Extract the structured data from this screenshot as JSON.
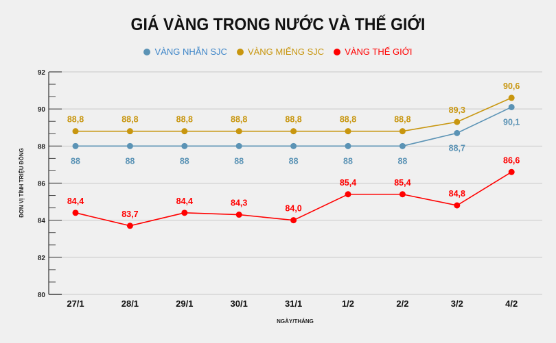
{
  "chart_data": {
    "type": "line",
    "title": "GIÁ VÀNG TRONG NƯỚC VÀ THẾ GIỚI",
    "xlabel": "NGÀY/THÁNG",
    "ylabel": "ĐƠN VỊ TÍNH TRIỆU ĐỒNG",
    "ylim": [
      80,
      92
    ],
    "yticks": [
      80,
      82,
      84,
      86,
      88,
      90,
      92
    ],
    "grid": true,
    "legend": "top",
    "categories": [
      "27/1",
      "28/1",
      "29/1",
      "30/1",
      "31/1",
      "1/2",
      "2/2",
      "3/2",
      "4/2"
    ],
    "series": [
      {
        "name": "VÀNG NHẪN SJC",
        "color": "#5b93b5",
        "values": [
          88,
          88,
          88,
          88,
          88,
          88,
          88,
          88.7,
          90.1
        ],
        "labels": [
          "88",
          "88",
          "88",
          "88",
          "88",
          "88",
          "88",
          "88,7",
          "90,1"
        ],
        "label_pos": "below"
      },
      {
        "name": "VÀNG MIẾNG SJC",
        "color": "#c8960f",
        "values": [
          88.8,
          88.8,
          88.8,
          88.8,
          88.8,
          88.8,
          88.8,
          89.3,
          90.6
        ],
        "labels": [
          "88,8",
          "88,8",
          "88,8",
          "88,8",
          "88,8",
          "88,8",
          "88,8",
          "89,3",
          "90,6"
        ],
        "label_pos": "above"
      },
      {
        "name": "VÀNG THẾ GIỚI",
        "color": "#ff0000",
        "values": [
          84.4,
          83.7,
          84.4,
          84.3,
          84.0,
          85.4,
          85.4,
          84.8,
          86.6
        ],
        "labels": [
          "84,4",
          "83,7",
          "84,4",
          "84,3",
          "84,0",
          "85,4",
          "85,4",
          "84,8",
          "86,6"
        ],
        "label_pos": "above"
      }
    ]
  }
}
